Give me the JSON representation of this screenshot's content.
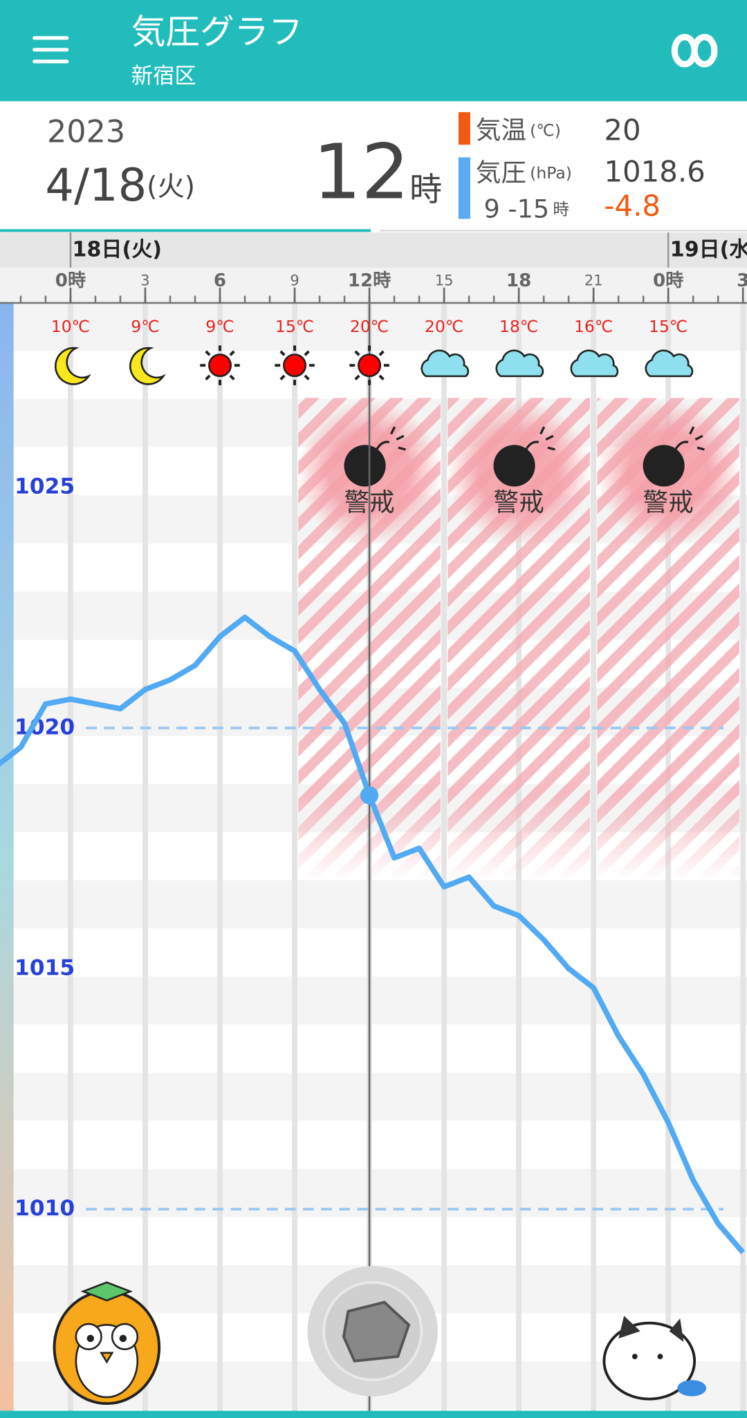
{
  "header": {
    "title": "気圧グラフ",
    "subtitle": "新宿区"
  },
  "info": {
    "year": "2023",
    "date": "4/18",
    "weekday": "(火)",
    "hour": 12,
    "hour_unit": "時",
    "temp_label": "気温",
    "temp_unit": "(℃)",
    "temp_value": "20",
    "pressure_label": "気圧",
    "pressure_unit": "(hPa)",
    "pressure_value": "1018.6",
    "range": "9 -15",
    "range_unit": "時",
    "change": "-4.8"
  },
  "chart_data": {
    "type": "line",
    "x": [
      -3,
      -2,
      -1,
      0,
      1,
      2,
      3,
      4,
      5,
      6,
      7,
      8,
      9,
      10,
      11,
      12,
      13,
      14,
      15,
      16,
      17,
      18,
      19,
      20,
      21,
      22,
      23,
      24,
      25,
      26,
      27
    ],
    "series": [
      {
        "color": "#52aaf2",
        "values": [
          1019.2,
          1019.6,
          1020.5,
          1020.6,
          1020.5,
          1020.4,
          1020.8,
          1021.0,
          1021.3,
          1021.9,
          1022.3,
          1021.9,
          1021.6,
          1020.8,
          1020.1,
          1018.6,
          1017.3,
          1017.5,
          1016.7,
          1016.9,
          1016.3,
          1016.1,
          1015.6,
          1015.0,
          1014.6,
          1013.6,
          1012.8,
          1011.8,
          1010.6,
          1009.7,
          1009.1
        ]
      }
    ],
    "xlim": [
      -2.83,
      27.16
    ],
    "ylim": [
      1005.81,
      1026.86
    ],
    "yticks": [
      1025,
      1020,
      1015,
      1010
    ],
    "reference_lines": [
      1020,
      1010
    ],
    "xticks": [
      {
        "value": 0,
        "label": "0時"
      },
      3,
      6,
      9,
      {
        "value": 12,
        "label": "12時"
      },
      15,
      18,
      21,
      {
        "value": 24,
        "label": "0時"
      },
      {
        "value": 27,
        "label": "3"
      }
    ],
    "days": [
      {
        "hour": 0,
        "label": "18日(火)"
      },
      {
        "hour": 24,
        "label": "19日(水"
      }
    ],
    "forecast": [
      {
        "hour": 0,
        "temp": "10℃",
        "weather": "moon"
      },
      {
        "hour": 3,
        "temp": "9℃",
        "weather": "moon"
      },
      {
        "hour": 6,
        "temp": "9℃",
        "weather": "sun"
      },
      {
        "hour": 9,
        "temp": "15℃",
        "weather": "sun"
      },
      {
        "hour": 12,
        "temp": "20℃",
        "weather": "sun"
      },
      {
        "hour": 15,
        "temp": "20℃",
        "weather": "cloud"
      },
      {
        "hour": 18,
        "temp": "18℃",
        "weather": "cloud"
      },
      {
        "hour": 21,
        "temp": "16℃",
        "weather": "cloud"
      },
      {
        "hour": 24,
        "temp": "15℃",
        "weather": "cloud"
      }
    ],
    "warnings": [
      {
        "start": 9,
        "end": 15,
        "label": "警戒"
      },
      {
        "start": 15,
        "end": 21,
        "label": "警戒"
      },
      {
        "start": 21,
        "end": 27,
        "label": "警戒"
      }
    ]
  }
}
